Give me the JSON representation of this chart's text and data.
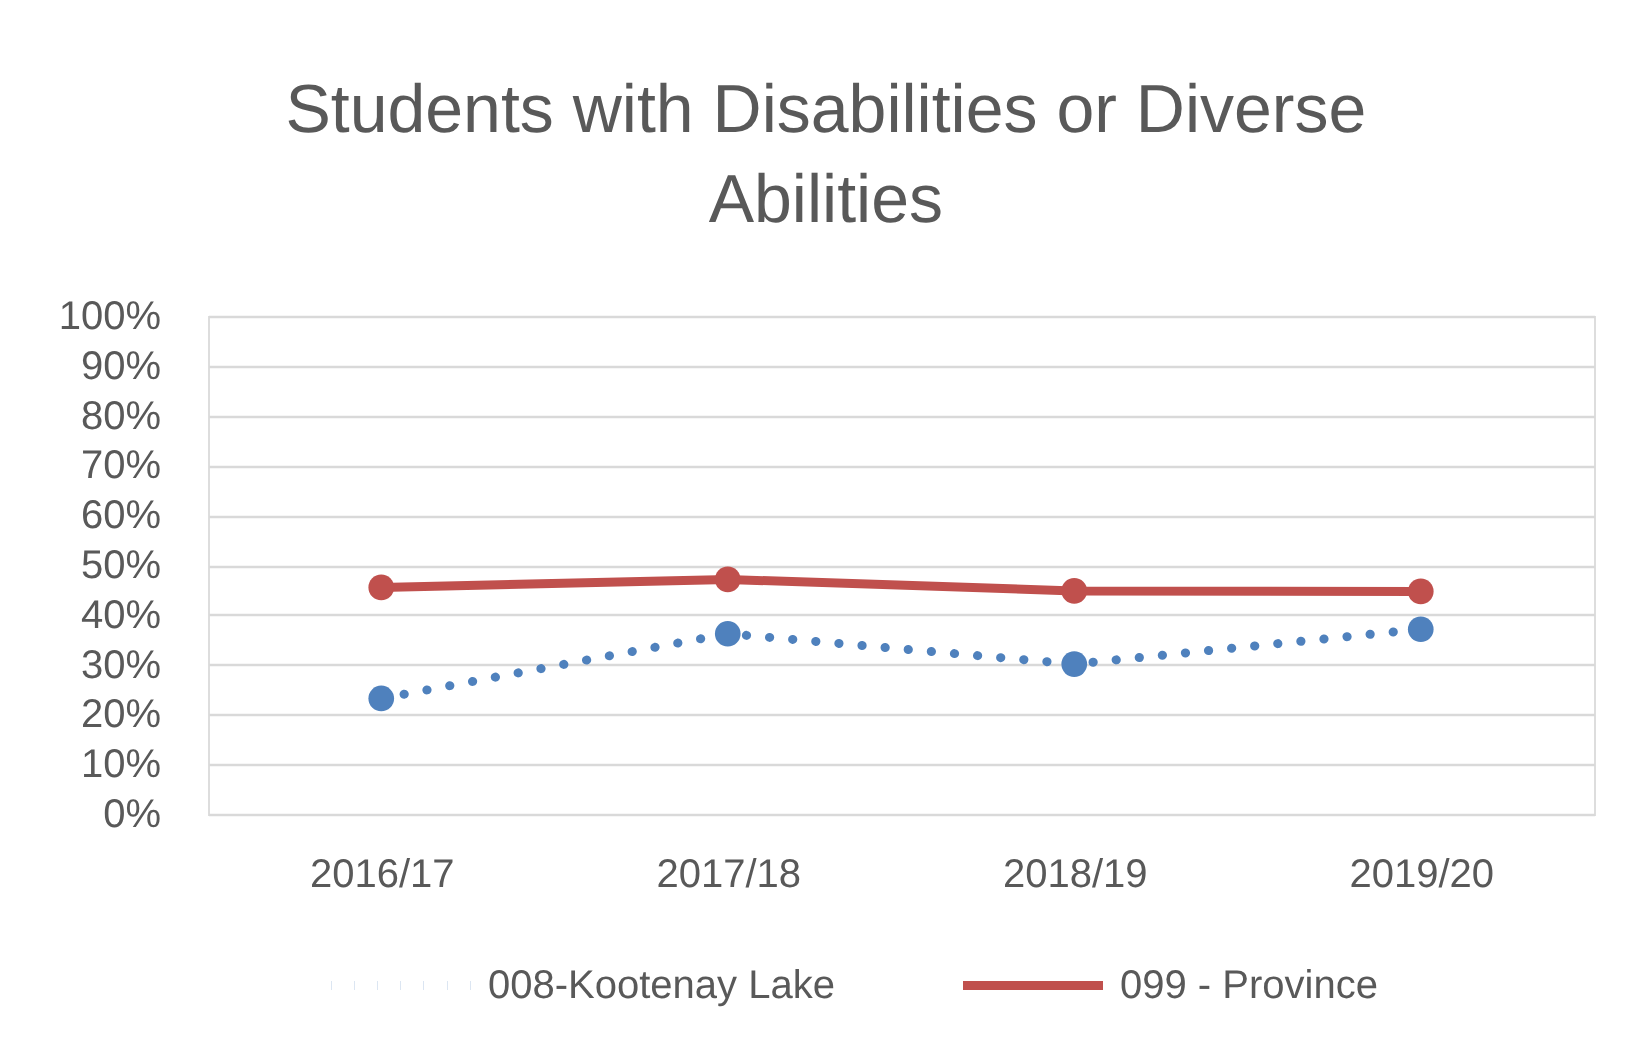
{
  "chart_data": {
    "type": "line",
    "title": "Students with Disabilities or Diverse Abilities",
    "categories": [
      "2016/17",
      "2017/18",
      "2018/19",
      "2019/20"
    ],
    "series": [
      {
        "name": "008-Kootenay Lake",
        "color": "#4f81bd",
        "line_style": "dotted",
        "values": [
          23.2,
          36.2,
          30.1,
          37.1
        ]
      },
      {
        "name": "099 - Province",
        "color": "#c0504d",
        "line_style": "solid",
        "values": [
          45.5,
          47.1,
          44.8,
          44.7
        ]
      }
    ],
    "ylim": [
      0,
      100
    ],
    "yticks": [
      {
        "value": 0,
        "label": "0%"
      },
      {
        "value": 10,
        "label": "10%"
      },
      {
        "value": 20,
        "label": "20%"
      },
      {
        "value": 30,
        "label": "30%"
      },
      {
        "value": 40,
        "label": "40%"
      },
      {
        "value": 50,
        "label": "50%"
      },
      {
        "value": 60,
        "label": "60%"
      },
      {
        "value": 70,
        "label": "70%"
      },
      {
        "value": 80,
        "label": "80%"
      },
      {
        "value": 90,
        "label": "90%"
      },
      {
        "value": 100,
        "label": "100%"
      }
    ],
    "grid": "y",
    "legend": "bottom",
    "marker": "circle"
  }
}
